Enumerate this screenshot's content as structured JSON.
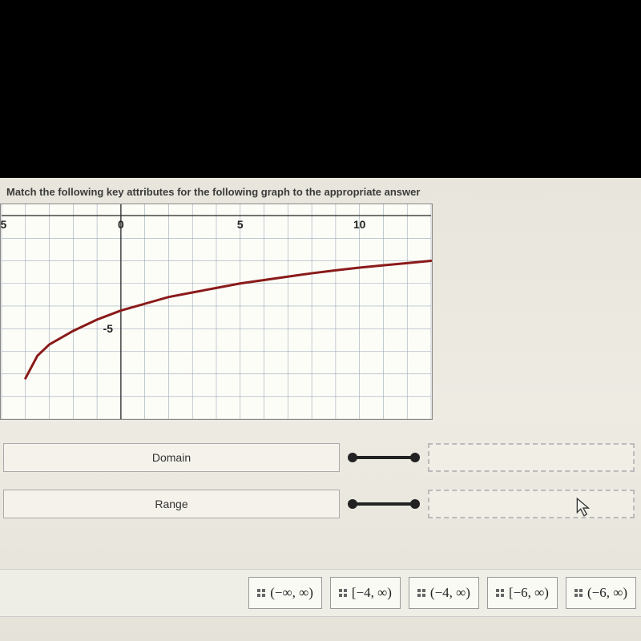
{
  "instruction": "Match the following key attributes for the following graph  to the appropriate answer",
  "attributes": [
    {
      "key": "domain",
      "label": "Domain"
    },
    {
      "key": "range",
      "label": "Range"
    }
  ],
  "options": [
    {
      "id": "opt1",
      "latex": "(−∞, ∞)"
    },
    {
      "id": "opt2",
      "latex": "[−4, ∞)"
    },
    {
      "id": "opt3",
      "latex": "(−4, ∞)"
    },
    {
      "id": "opt4",
      "latex": "[−6, ∞)"
    },
    {
      "id": "opt5",
      "latex": "(−6, ∞)"
    }
  ],
  "graph": {
    "type": "curve",
    "xlim": [
      -5,
      13
    ],
    "ylim": [
      -9,
      0.5
    ],
    "visible_area_origin": "top-left-at-y0",
    "x_ticks": [
      -5,
      0,
      5,
      10
    ],
    "y_ticks": [
      -5
    ],
    "grid_step": 1,
    "background_color": "#fdfdf8",
    "grid_color": "#9aa8b8",
    "grid_width": 0.6,
    "axis_color": "#333333",
    "tick_label_color": "#222222",
    "tick_label_fontsize": 14,
    "curve_color": "#8a1a1a",
    "curve_width": 3,
    "curve_points": [
      [
        -4.0,
        -7.2
      ],
      [
        -3.5,
        -6.2
      ],
      [
        -3.0,
        -5.7
      ],
      [
        -2.0,
        -5.1
      ],
      [
        -1.0,
        -4.6
      ],
      [
        0.0,
        -4.2
      ],
      [
        1.0,
        -3.9
      ],
      [
        2.0,
        -3.6
      ],
      [
        3.0,
        -3.4
      ],
      [
        4.0,
        -3.2
      ],
      [
        5.0,
        -3.0
      ],
      [
        6.0,
        -2.85
      ],
      [
        7.0,
        -2.7
      ],
      [
        8.0,
        -2.55
      ],
      [
        9.0,
        -2.42
      ],
      [
        10.0,
        -2.3
      ],
      [
        11.0,
        -2.2
      ],
      [
        12.0,
        -2.1
      ],
      [
        13.0,
        -2.0
      ]
    ]
  },
  "colors": {
    "page_bg": "#000000",
    "paper_bg": "#e8e6dc",
    "box_border": "#aaaaaa",
    "dashed_border": "#bbbbbb",
    "connector": "#222222"
  }
}
